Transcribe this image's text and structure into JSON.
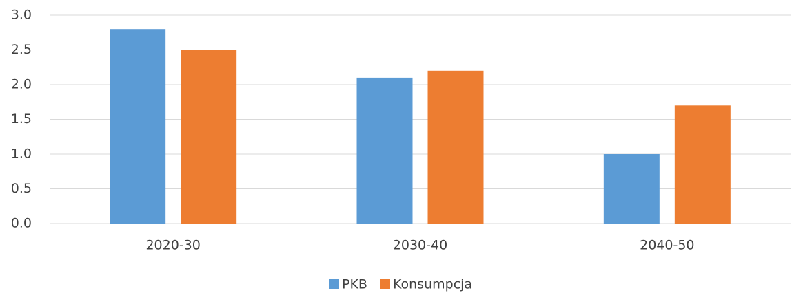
{
  "chart_data": {
    "type": "bar",
    "categories": [
      "2020-30",
      "2030-40",
      "2040-50"
    ],
    "series": [
      {
        "name": "PKB",
        "color": "#5b9bd5",
        "values": [
          2.8,
          2.1,
          1.0
        ]
      },
      {
        "name": "Konsumpcja",
        "color": "#ed7d31",
        "values": [
          2.5,
          2.2,
          1.7
        ]
      }
    ],
    "ylim": [
      0,
      3
    ],
    "yticks": [
      {
        "value": 0,
        "label": "0.0"
      },
      0.5,
      {
        "value": 1,
        "label": "1.0"
      },
      1.5,
      {
        "value": 2,
        "label": "2.0"
      },
      2.5,
      {
        "value": 3,
        "label": "3.0"
      }
    ],
    "grid": true,
    "legend": "bottom"
  }
}
